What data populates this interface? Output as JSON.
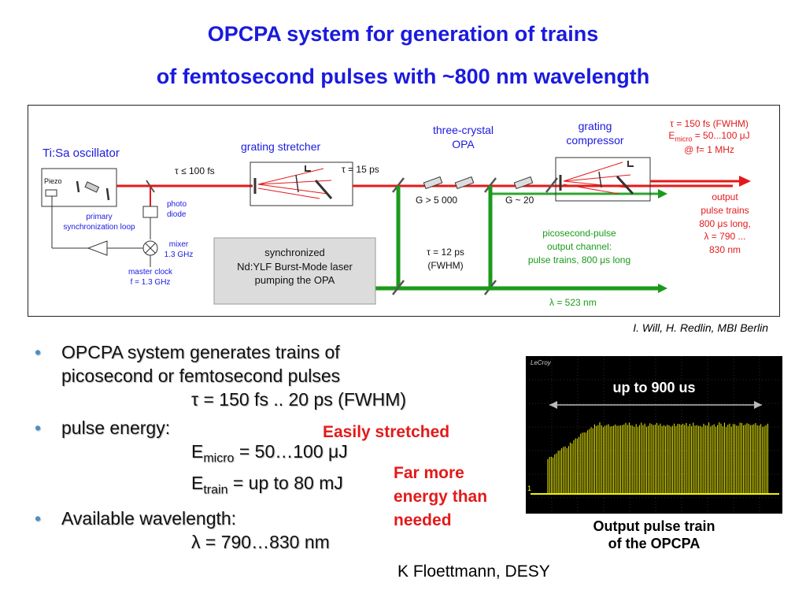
{
  "title": {
    "line1": "OPCPA system for generation of trains",
    "line2": "of  femtosecond pulses with ~800 nm wavelength"
  },
  "diagram": {
    "tisa_label": "Ti:Sa oscillator",
    "piezo": "Piezo",
    "tau_oscillator": "τ ≤ 100 fs",
    "stretcher_label": "grating stretcher",
    "tau_stretched": "τ = 15 ps",
    "opa_label_1": "three-crystal",
    "opa_label_2": "OPA",
    "gain1": "G > 5 000",
    "gain2": "G ~ 20",
    "compressor_label_1": "grating",
    "compressor_label_2": "compressor",
    "spec_line1": "τ = 150 fs (FWHM)",
    "spec_line2_prefix": "E",
    "spec_line2_sub": "micro",
    "spec_line2_suffix": " = 50...100  μJ",
    "spec_line3": "@ f= 1 MHz",
    "output_1": "output",
    "output_2": "pulse trains",
    "output_3": "800  μs long,",
    "output_4": "λ = 790 ...",
    "output_5": "830 nm",
    "photo_diode_1": "photo",
    "photo_diode_2": "diode",
    "primary_loop_1": "primary",
    "primary_loop_2": "synchronization loop",
    "mixer_1": "mixer",
    "mixer_2": "1.3 GHz",
    "master_clock_1": "master clock",
    "master_clock_2": "f = 1.3 GHz",
    "pump_1": "synchronized",
    "pump_2": "Nd:YLF Burst-Mode laser",
    "pump_3": "pumping the OPA",
    "tau_pump_1": "τ = 12 ps",
    "tau_pump_2": "(FWHM)",
    "ps_channel_1": "picosecond-pulse",
    "ps_channel_2": "output channel:",
    "ps_channel_3": "pulse trains, 800   μs long",
    "pump_wavelength": "λ = 523 nm"
  },
  "credit_will": "I. Will, H. Redlin, MBI Berlin",
  "bullets": {
    "b1_line1": "OPCPA system generates trains of",
    "b1_line2": "picosecond or femtosecond pulses",
    "b1_line3": "τ = 150 fs .. 20 ps (FWHM)",
    "b2_line1": "pulse energy:",
    "b2_e1_prefix": "E",
    "b2_e1_sub": "micro",
    "b2_e1_suffix": " = 50…100 μJ",
    "b2_e2_prefix": "E",
    "b2_e2_sub": "train",
    "b2_e2_suffix": " = up to 80 mJ",
    "b3_line1": "Available wavelength:",
    "b3_line2": "λ = 790…830 nm"
  },
  "note_stretched": "Easily stretched",
  "note_energy_1": "Far more",
  "note_energy_2": "energy than",
  "note_energy_3": "needed",
  "scope": {
    "brand": "LeCroy",
    "duration_label": "up to 900 us",
    "channel_marker": "1",
    "trace_color": "#f2f20a"
  },
  "scope_caption_1": "Output pulse train",
  "scope_caption_2": "of the OPCPA",
  "credit_desy": "K Floettmann, DESY",
  "colors": {
    "title": "#1a1adf",
    "laser_red": "#e31a1a",
    "pump_green": "#1a9a1a",
    "note_red": "#e31a1a"
  }
}
